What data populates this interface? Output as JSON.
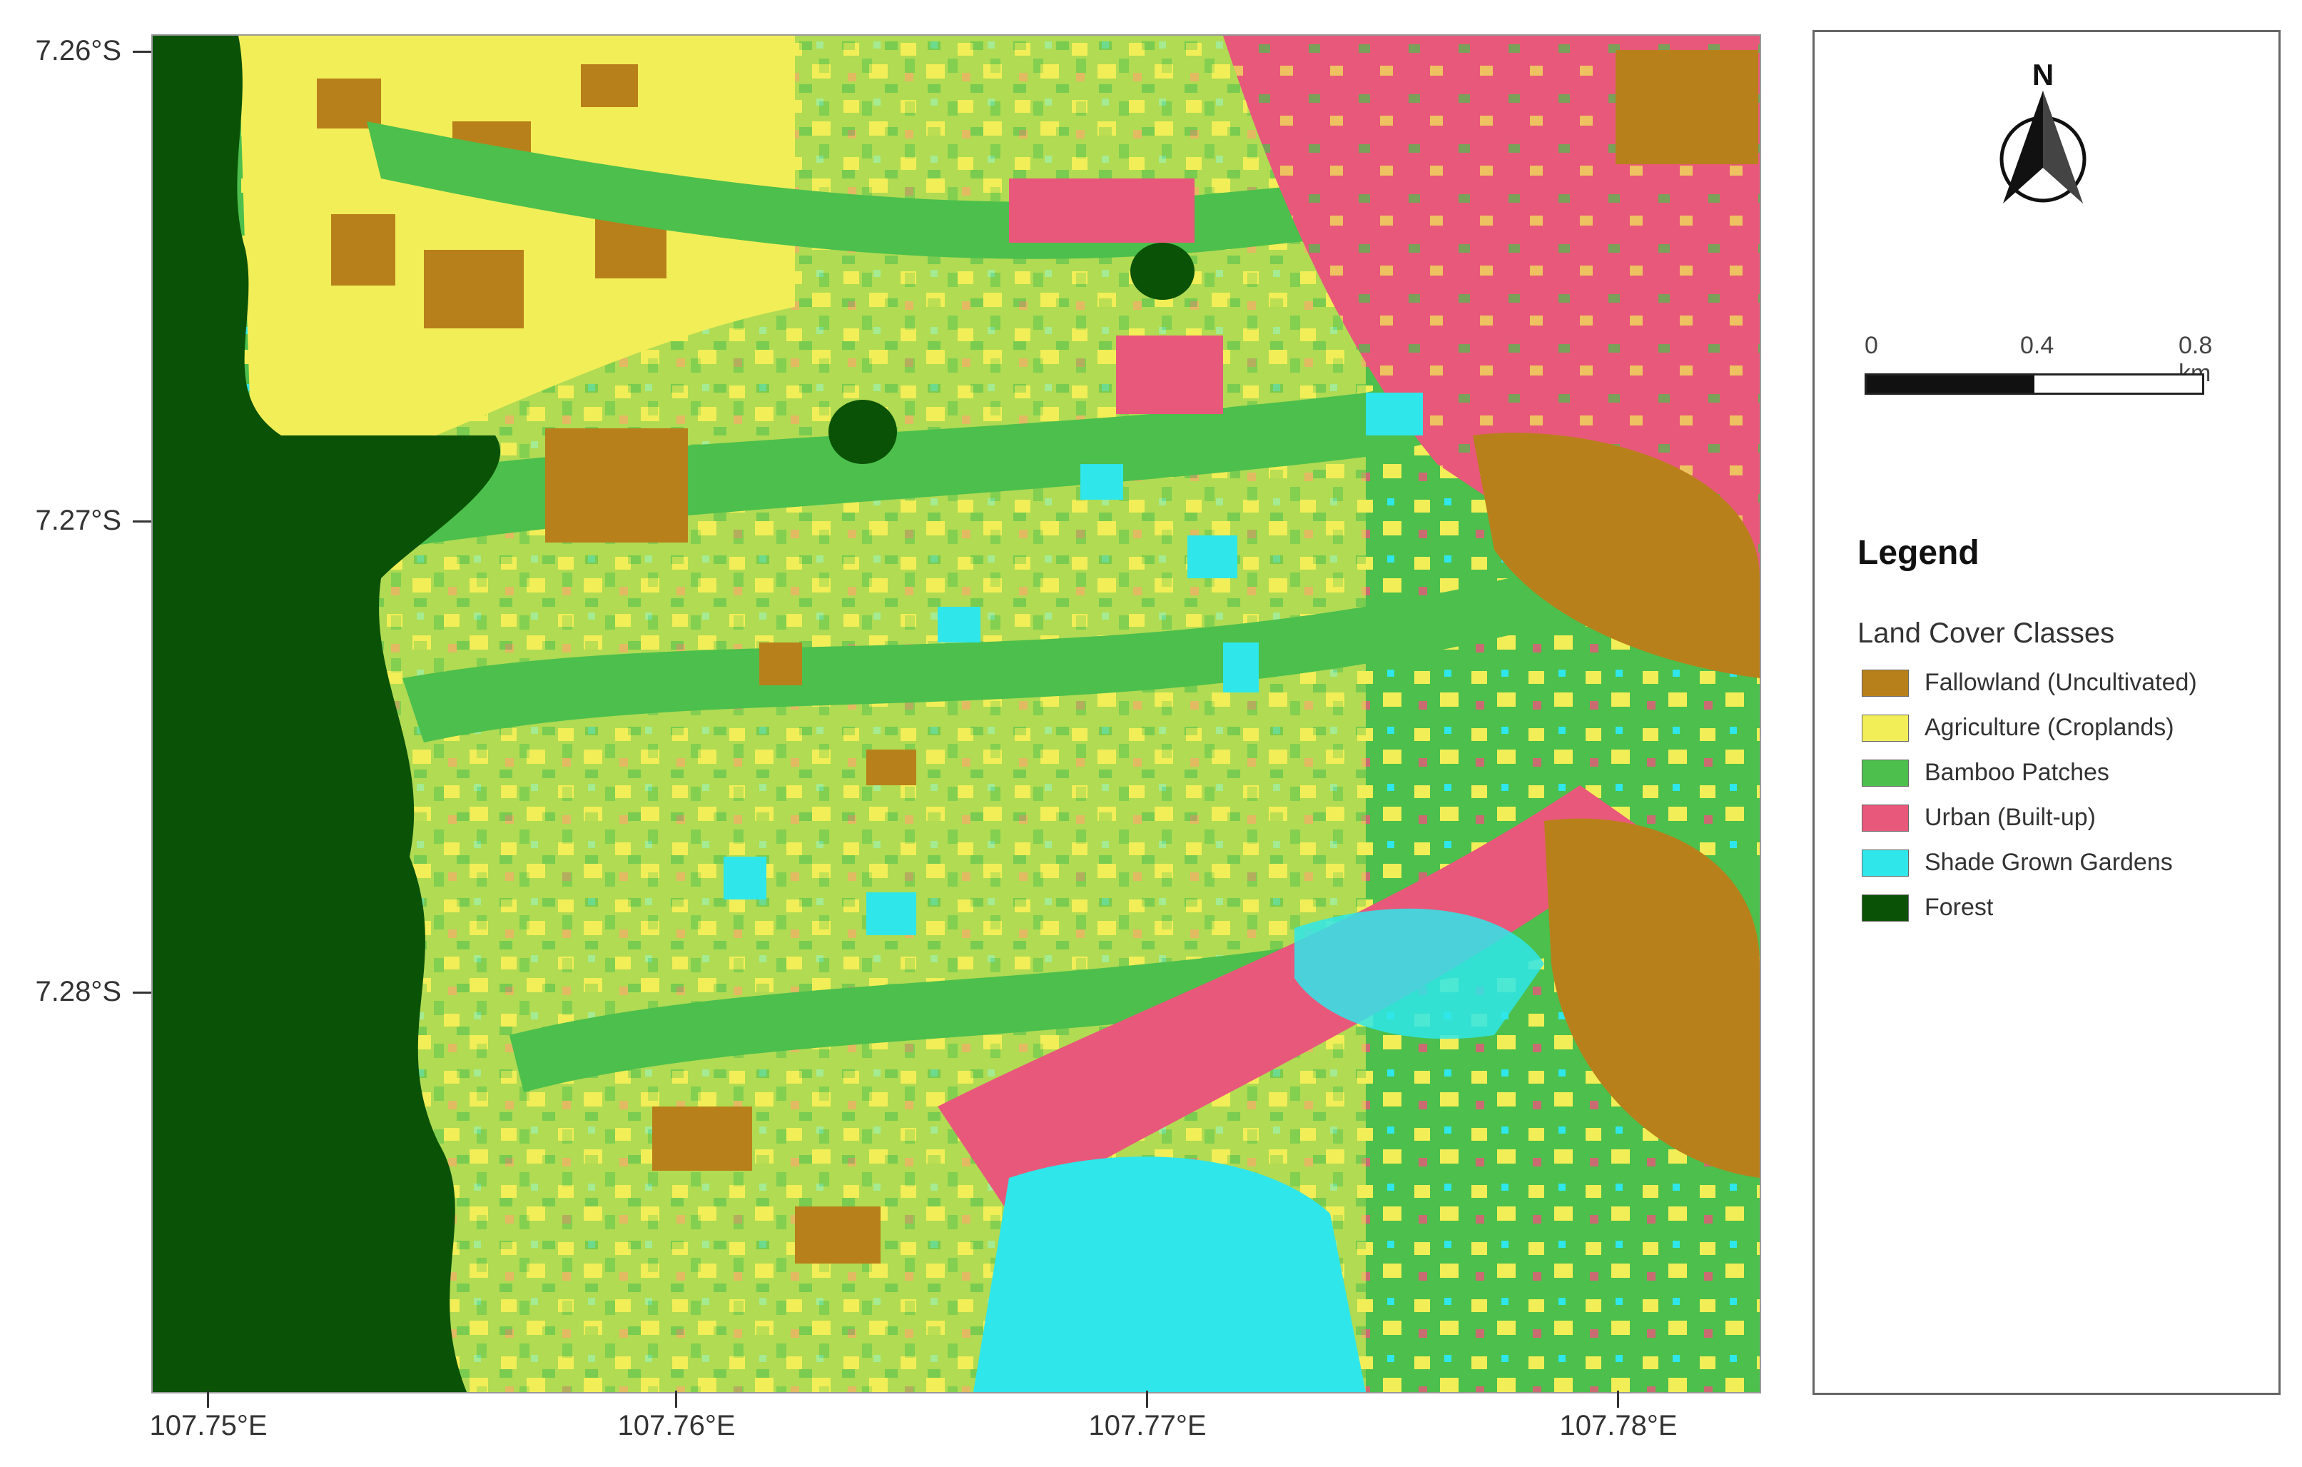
{
  "map": {
    "latitude_ticks": [
      "7.26°S",
      "7.27°S",
      "7.28°S"
    ],
    "longitude_ticks": [
      "107.75°E",
      "107.76°E",
      "107.77°E",
      "107.78°E"
    ],
    "north_arrow": {
      "label": "N",
      "icon": "north-arrow-icon"
    },
    "scale_bar": {
      "labels": [
        "0",
        "0.4",
        "0.8 km"
      ],
      "segments_km": [
        0.4,
        0.4
      ]
    }
  },
  "legend": {
    "title": "Legend",
    "subtitle": "Land Cover Classes",
    "items": [
      {
        "label": "Fallowland (Uncultivated)",
        "color": "#b8801a"
      },
      {
        "label": "Agriculture (Croplands)",
        "color": "#f2ee57"
      },
      {
        "label": "Bamboo Patches",
        "color": "#4cbf4c"
      },
      {
        "label": "Urban (Built-up)",
        "color": "#e8587a"
      },
      {
        "label": "Shade Grown Gardens",
        "color": "#2fe6ea"
      },
      {
        "label": "Forest",
        "color": "#0a5206"
      }
    ]
  }
}
